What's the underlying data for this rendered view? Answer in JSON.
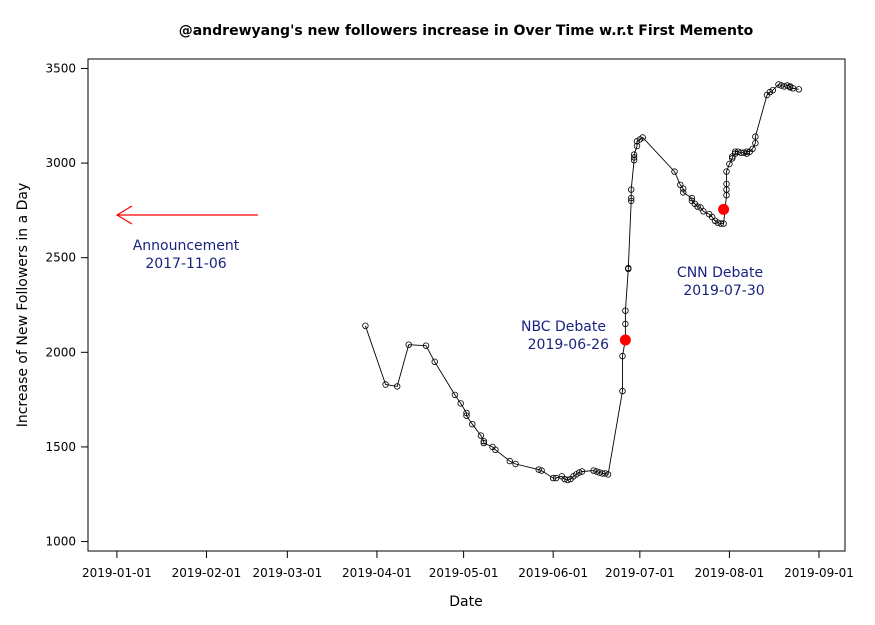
{
  "chart_data": {
    "type": "line",
    "title": "@andrewyang's new followers increase in Over Time w.r.t First Memento",
    "xlabel": "Date",
    "ylabel": "Increase of New Followers in a Day",
    "xlim": [
      "2018-12-22",
      "2019-09-10"
    ],
    "ylim": [
      950,
      3550
    ],
    "x_ticks": [
      "2019-01-01",
      "2019-02-01",
      "2019-03-01",
      "2019-04-01",
      "2019-05-01",
      "2019-06-01",
      "2019-07-01",
      "2019-08-01",
      "2019-09-01"
    ],
    "y_ticks": [
      1000,
      1500,
      2000,
      2500,
      3000,
      3500
    ],
    "grid": false,
    "series": [
      {
        "color": "#000000",
        "marker": "open-circle",
        "points": [
          {
            "x": "2019-03-28",
            "y": 2140
          },
          {
            "x": "2019-04-04",
            "y": 1830
          },
          {
            "x": "2019-04-08",
            "y": 1820
          },
          {
            "x": "2019-04-12",
            "y": 2040
          },
          {
            "x": "2019-04-18",
            "y": 2035
          },
          {
            "x": "2019-04-21",
            "y": 1950
          },
          {
            "x": "2019-04-28",
            "y": 1775
          },
          {
            "x": "2019-04-30",
            "y": 1730
          },
          {
            "x": "2019-05-02",
            "y": 1680
          },
          {
            "x": "2019-05-02",
            "y": 1665
          },
          {
            "x": "2019-05-04",
            "y": 1620
          },
          {
            "x": "2019-05-07",
            "y": 1560
          },
          {
            "x": "2019-05-08",
            "y": 1530
          },
          {
            "x": "2019-05-08",
            "y": 1520
          },
          {
            "x": "2019-05-11",
            "y": 1500
          },
          {
            "x": "2019-05-12",
            "y": 1485
          },
          {
            "x": "2019-05-17",
            "y": 1425
          },
          {
            "x": "2019-05-19",
            "y": 1410
          },
          {
            "x": "2019-05-27",
            "y": 1380
          },
          {
            "x": "2019-05-28",
            "y": 1375
          },
          {
            "x": "2019-06-01",
            "y": 1335
          },
          {
            "x": "2019-06-02",
            "y": 1335
          },
          {
            "x": "2019-06-04",
            "y": 1345
          },
          {
            "x": "2019-06-05",
            "y": 1330
          },
          {
            "x": "2019-06-06",
            "y": 1325
          },
          {
            "x": "2019-06-07",
            "y": 1330
          },
          {
            "x": "2019-06-08",
            "y": 1345
          },
          {
            "x": "2019-06-09",
            "y": 1355
          },
          {
            "x": "2019-06-10",
            "y": 1365
          },
          {
            "x": "2019-06-11",
            "y": 1370
          },
          {
            "x": "2019-06-15",
            "y": 1375
          },
          {
            "x": "2019-06-16",
            "y": 1370
          },
          {
            "x": "2019-06-17",
            "y": 1365
          },
          {
            "x": "2019-06-18",
            "y": 1360
          },
          {
            "x": "2019-06-19",
            "y": 1360
          },
          {
            "x": "2019-06-20",
            "y": 1355
          },
          {
            "x": "2019-06-25",
            "y": 1795
          },
          {
            "x": "2019-06-25",
            "y": 1980
          },
          {
            "x": "2019-06-26",
            "y": 2070
          },
          {
            "x": "2019-06-26",
            "y": 2150
          },
          {
            "x": "2019-06-26",
            "y": 2220
          },
          {
            "x": "2019-06-27",
            "y": 2440
          },
          {
            "x": "2019-06-27",
            "y": 2445
          },
          {
            "x": "2019-06-28",
            "y": 2800
          },
          {
            "x": "2019-06-28",
            "y": 2815
          },
          {
            "x": "2019-06-28",
            "y": 2860
          },
          {
            "x": "2019-06-29",
            "y": 3015
          },
          {
            "x": "2019-06-29",
            "y": 3030
          },
          {
            "x": "2019-06-29",
            "y": 3045
          },
          {
            "x": "2019-06-30",
            "y": 3090
          },
          {
            "x": "2019-06-30",
            "y": 3115
          },
          {
            "x": "2019-07-01",
            "y": 3125
          },
          {
            "x": "2019-07-02",
            "y": 3135
          },
          {
            "x": "2019-07-13",
            "y": 2955
          },
          {
            "x": "2019-07-15",
            "y": 2885
          },
          {
            "x": "2019-07-16",
            "y": 2865
          },
          {
            "x": "2019-07-16",
            "y": 2845
          },
          {
            "x": "2019-07-19",
            "y": 2815
          },
          {
            "x": "2019-07-19",
            "y": 2800
          },
          {
            "x": "2019-07-20",
            "y": 2785
          },
          {
            "x": "2019-07-21",
            "y": 2770
          },
          {
            "x": "2019-07-22",
            "y": 2765
          },
          {
            "x": "2019-07-23",
            "y": 2745
          },
          {
            "x": "2019-07-25",
            "y": 2730
          },
          {
            "x": "2019-07-26",
            "y": 2715
          },
          {
            "x": "2019-07-27",
            "y": 2695
          },
          {
            "x": "2019-07-28",
            "y": 2685
          },
          {
            "x": "2019-07-29",
            "y": 2680
          },
          {
            "x": "2019-07-30",
            "y": 2680
          },
          {
            "x": "2019-07-31",
            "y": 2830
          },
          {
            "x": "2019-07-31",
            "y": 2860
          },
          {
            "x": "2019-07-31",
            "y": 2890
          },
          {
            "x": "2019-07-31",
            "y": 2955
          },
          {
            "x": "2019-08-01",
            "y": 2995
          },
          {
            "x": "2019-08-02",
            "y": 3025
          },
          {
            "x": "2019-08-02",
            "y": 3035
          },
          {
            "x": "2019-08-03",
            "y": 3050
          },
          {
            "x": "2019-08-03",
            "y": 3060
          },
          {
            "x": "2019-08-04",
            "y": 3060
          },
          {
            "x": "2019-08-05",
            "y": 3055
          },
          {
            "x": "2019-08-06",
            "y": 3055
          },
          {
            "x": "2019-08-07",
            "y": 3050
          },
          {
            "x": "2019-08-07",
            "y": 3060
          },
          {
            "x": "2019-08-08",
            "y": 3060
          },
          {
            "x": "2019-08-09",
            "y": 3075
          },
          {
            "x": "2019-08-10",
            "y": 3105
          },
          {
            "x": "2019-08-10",
            "y": 3140
          },
          {
            "x": "2019-08-14",
            "y": 3360
          },
          {
            "x": "2019-08-15",
            "y": 3375
          },
          {
            "x": "2019-08-16",
            "y": 3385
          },
          {
            "x": "2019-08-18",
            "y": 3415
          },
          {
            "x": "2019-08-19",
            "y": 3410
          },
          {
            "x": "2019-08-20",
            "y": 3405
          },
          {
            "x": "2019-08-21",
            "y": 3410
          },
          {
            "x": "2019-08-22",
            "y": 3405
          },
          {
            "x": "2019-08-22",
            "y": 3400
          },
          {
            "x": "2019-08-23",
            "y": 3395
          },
          {
            "x": "2019-08-25",
            "y": 3390
          }
        ]
      }
    ],
    "highlighted_points": [
      {
        "x": "2019-06-26",
        "y": 2065,
        "color": "#ff0000"
      },
      {
        "x": "2019-07-30",
        "y": 2755,
        "color": "#ff0000"
      }
    ],
    "annotations": [
      {
        "id": "announcement",
        "lines": [
          "Announcement",
          "2017-11-06"
        ],
        "color": "#1a237e"
      },
      {
        "id": "nbc",
        "lines": [
          "NBC Debate",
          "2019-06-26"
        ],
        "color": "#1a237e"
      },
      {
        "id": "cnn",
        "lines": [
          "CNN Debate",
          "2019-07-30"
        ],
        "color": "#1a237e"
      }
    ],
    "arrow": {
      "direction": "left",
      "color": "#ff0000"
    }
  }
}
